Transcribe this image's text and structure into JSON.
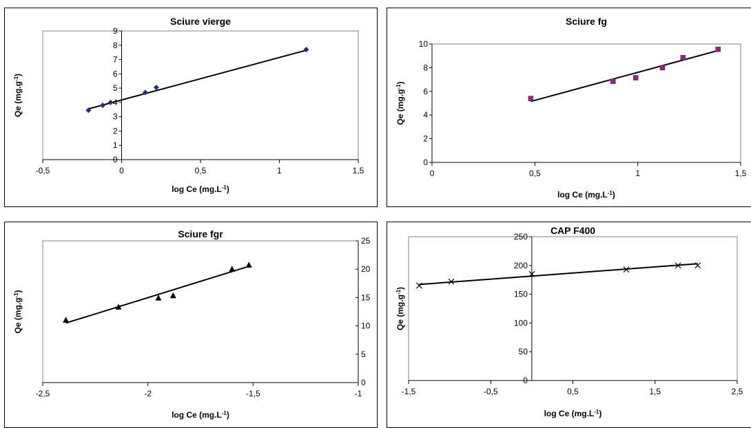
{
  "chart_data": [
    {
      "type": "scatter",
      "title": "Sciure vierge",
      "xlabel": "log Ce (mg.L",
      "xlabel_sup": "-1",
      "ylabel": "Qe (mg.g",
      "ylabel_sup": "-1",
      "xlim": [
        -0.5,
        1.5
      ],
      "ylim": [
        0,
        9
      ],
      "xticks": [
        "-0,5",
        "0",
        "0,5",
        "1",
        "1,5"
      ],
      "yticks": [
        "0",
        "1",
        "2",
        "3",
        "4",
        "5",
        "6",
        "7",
        "8",
        "9"
      ],
      "marker": "diamond",
      "marker_color": "#1f2f7a",
      "series": [
        {
          "x": [
            -0.21,
            -0.12,
            -0.07,
            0.15,
            0.22,
            1.17
          ],
          "y": [
            3.45,
            3.8,
            4.0,
            4.7,
            5.05,
            7.7
          ]
        }
      ],
      "trendline": {
        "x": [
          -0.21,
          1.17
        ],
        "y": [
          3.55,
          7.65
        ]
      }
    },
    {
      "type": "scatter",
      "title": "Sciure fg",
      "xlabel": "log Ce (mg.L",
      "xlabel_sup": "-1",
      "ylabel": "Qe (mg.g",
      "ylabel_sup": "-1",
      "xlim": [
        0,
        1.5
      ],
      "ylim": [
        0,
        10
      ],
      "xticks": [
        "0",
        "0,5",
        "1",
        "1,5"
      ],
      "yticks": [
        "0",
        "2",
        "4",
        "6",
        "8",
        "10"
      ],
      "marker": "square",
      "marker_color": "#9c1f8c",
      "series": [
        {
          "x": [
            0.48,
            0.88,
            0.99,
            1.12,
            1.22,
            1.39
          ],
          "y": [
            5.4,
            6.85,
            7.15,
            8.0,
            8.85,
            9.55
          ]
        }
      ],
      "trendline": {
        "x": [
          0.48,
          1.39
        ],
        "y": [
          5.15,
          9.45
        ]
      }
    },
    {
      "type": "scatter",
      "title": "Sciure fgr",
      "xlabel": "log Ce (mg.L",
      "xlabel_sup": "-1",
      "ylabel": "Qe (mg.g",
      "ylabel_sup": "-1",
      "xlim": [
        -2.5,
        -1
      ],
      "ylim": [
        0,
        25
      ],
      "xticks": [
        "-2,5",
        "-2",
        "-1,5",
        "-1"
      ],
      "yticks": [
        "0",
        "5",
        "10",
        "15",
        "20",
        "25"
      ],
      "marker": "triangle",
      "marker_color": "#000000",
      "series": [
        {
          "x": [
            -2.39,
            -2.14,
            -1.95,
            -1.88,
            -1.6,
            -1.52
          ],
          "y": [
            11.0,
            13.3,
            14.9,
            15.3,
            20.0,
            20.7
          ]
        }
      ],
      "trendline": {
        "x": [
          -2.39,
          -1.52
        ],
        "y": [
          10.5,
          20.5
        ]
      }
    },
    {
      "type": "scatter",
      "title": "CAP F400",
      "xlabel": "log Ce (mg.L",
      "xlabel_sup": "-1",
      "ylabel": "Qe (mg.g",
      "ylabel_sup": "-1",
      "xlim": [
        -1.5,
        2.5
      ],
      "ylim": [
        0,
        250
      ],
      "xticks": [
        "-1,5",
        "-0,5",
        "0,5",
        "1,5",
        "2,5"
      ],
      "yticks": [
        "0",
        "50",
        "100",
        "150",
        "200",
        "250"
      ],
      "marker": "x",
      "marker_color": "#000000",
      "series": [
        {
          "x": [
            -1.37,
            -0.98,
            0.0,
            1.15,
            1.78,
            2.02
          ],
          "y": [
            165,
            172,
            185,
            193,
            200,
            200
          ]
        }
      ],
      "trendline": {
        "x": [
          -1.37,
          2.02
        ],
        "y": [
          167,
          203
        ]
      }
    }
  ]
}
